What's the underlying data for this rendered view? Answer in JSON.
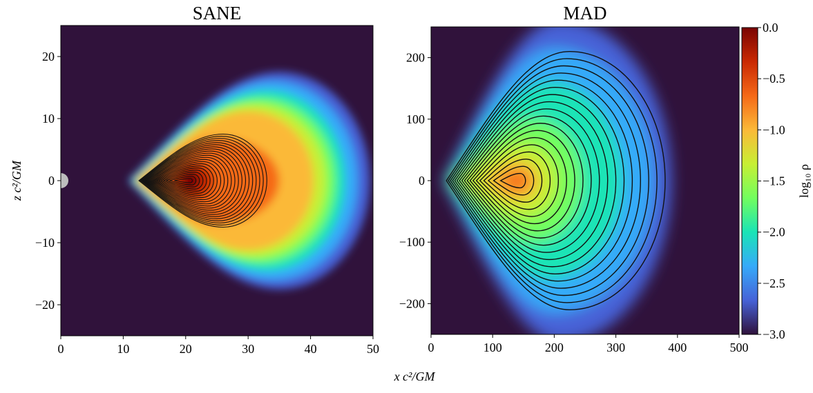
{
  "chart_data": [
    {
      "type": "contour",
      "title": "SANE",
      "xlabel": "x c²/GM",
      "ylabel": "z c²/GM",
      "xlim": [
        0,
        50
      ],
      "ylim": [
        -25,
        25
      ],
      "xticks": [
        0,
        10,
        20,
        30,
        40,
        50
      ],
      "yticks": [
        {
          "value": -20,
          "label": "−20"
        },
        {
          "value": -10,
          "label": "−10"
        },
        0,
        10,
        20
      ]
    },
    {
      "type": "contour",
      "title": "MAD",
      "xlim": [
        0,
        500
      ],
      "ylim": [
        -250,
        250
      ],
      "xticks": [
        0,
        100,
        200,
        300,
        400,
        500
      ],
      "yticks": [
        {
          "value": -200,
          "label": "−200"
        },
        {
          "value": -100,
          "label": "−100"
        },
        0,
        100,
        200
      ],
      "colorbar": {
        "label": "log₁₀ ρ",
        "lim": [
          -3,
          0
        ],
        "ticks": [
          {
            "value": 0,
            "label": "0.0"
          },
          {
            "value": -0.5,
            "label": "−0.5"
          },
          {
            "value": -1,
            "label": "−1.0"
          },
          {
            "value": -1.5,
            "label": "−1.5"
          },
          {
            "value": -2,
            "label": "−2.0"
          },
          {
            "value": -2.5,
            "label": "−2.5"
          },
          {
            "value": -3,
            "label": "−3.0"
          }
        ],
        "colormap": [
          "#30123b",
          "#4662d7",
          "#36aaf9",
          "#1ae4b6",
          "#72fe5e",
          "#c7ef34",
          "#fbb938",
          "#f56918",
          "#c92903",
          "#7a0403"
        ]
      }
    }
  ]
}
